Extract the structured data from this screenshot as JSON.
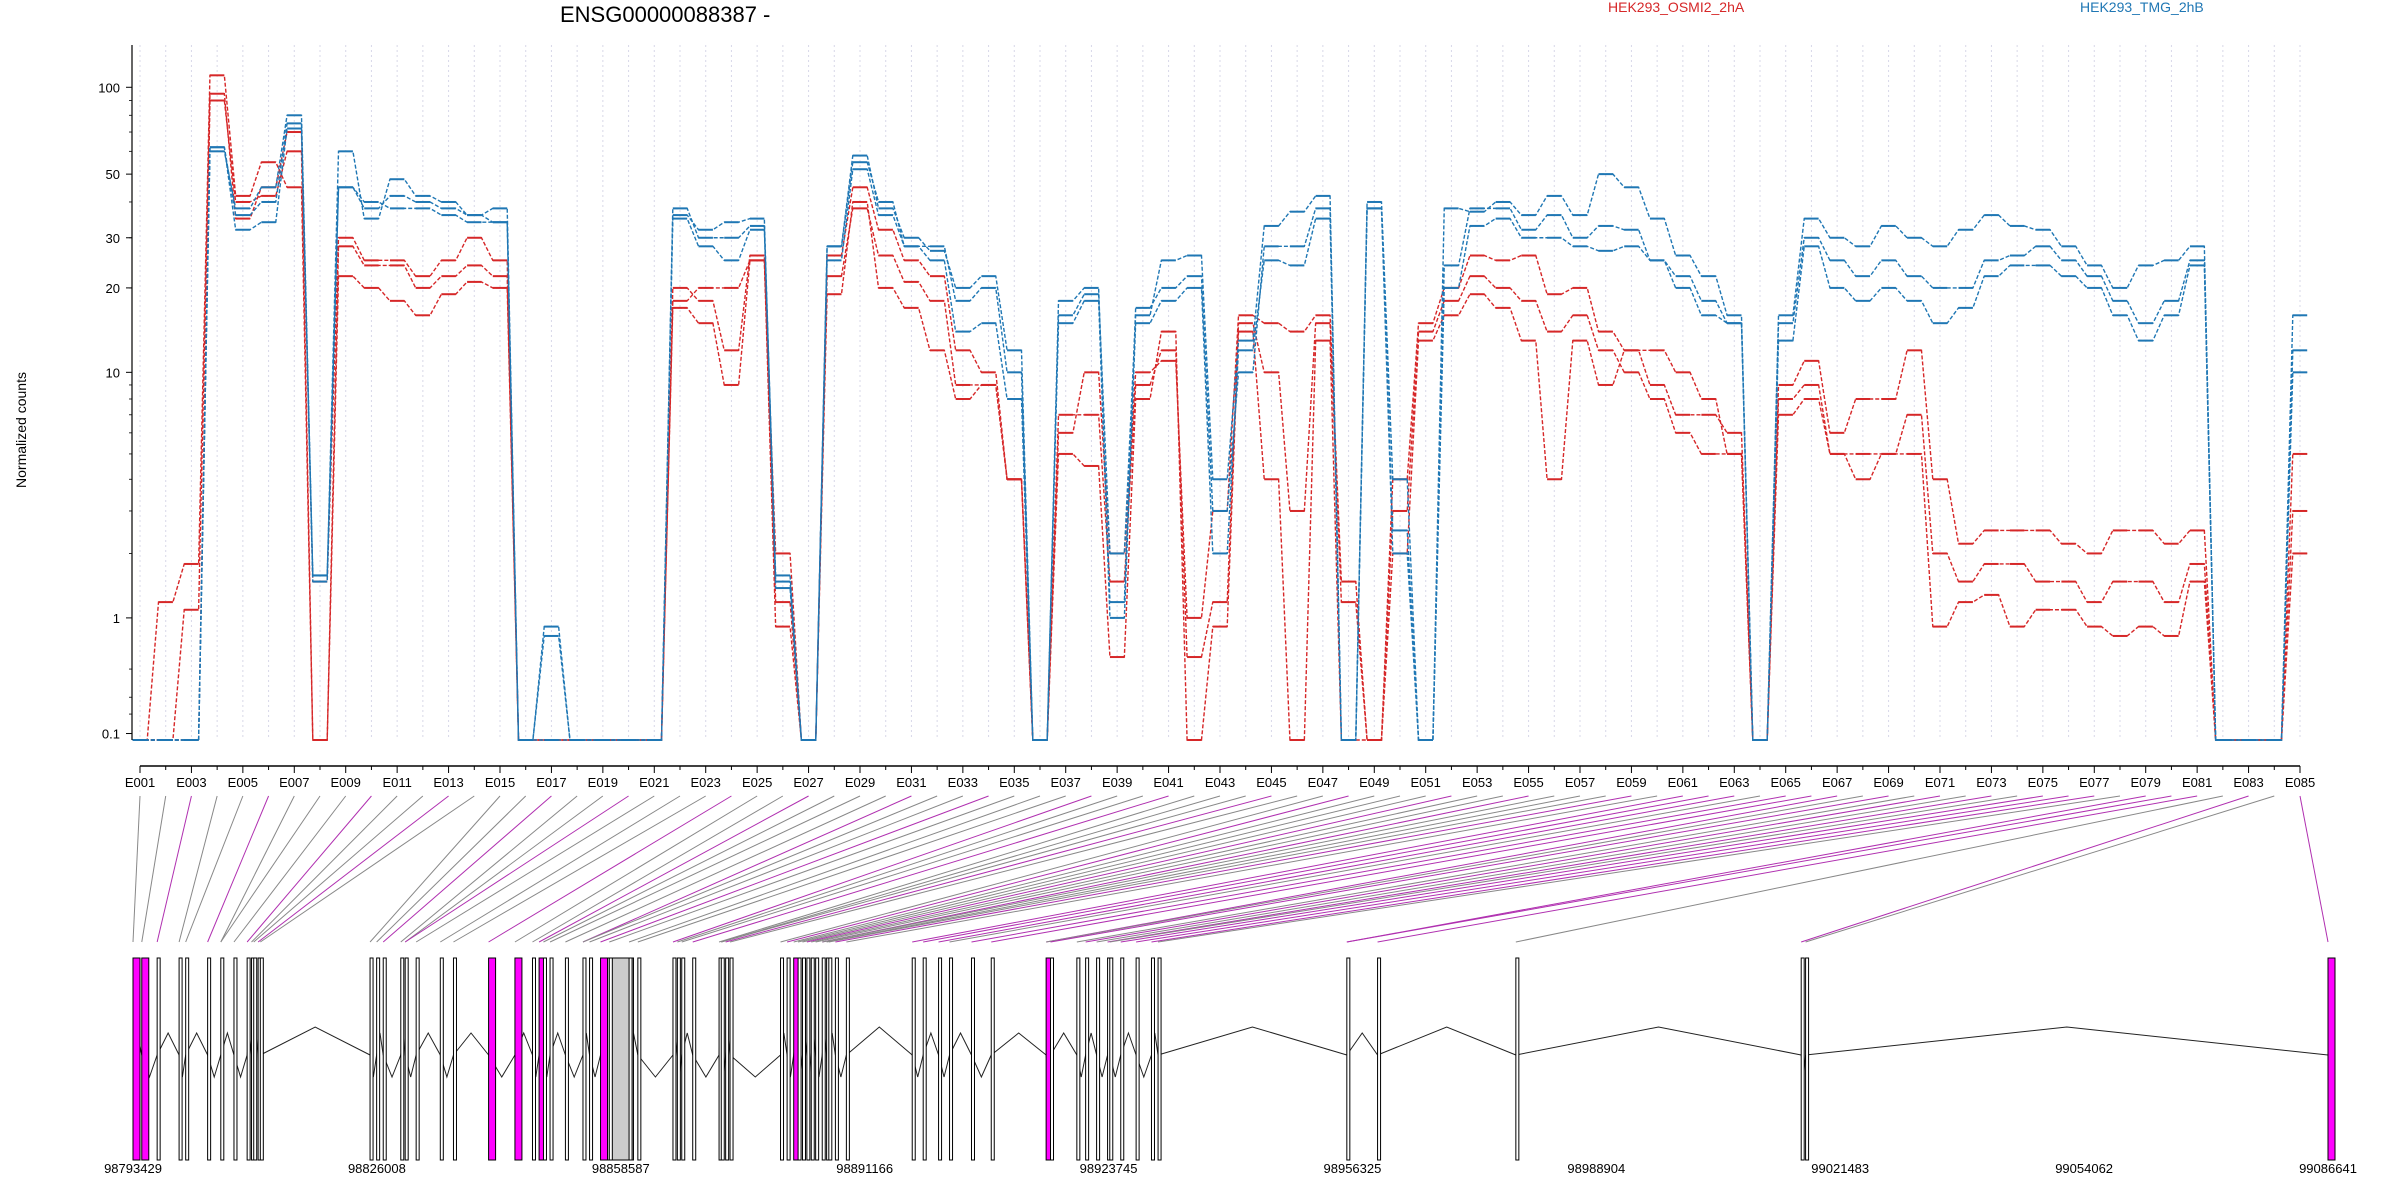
{
  "chart_data": {
    "type": "line",
    "title": "ENSG00000088387 -",
    "xlabel": "",
    "ylabel": "Normalized counts",
    "y_scale": "log (pseudo-count)",
    "y_ticks": [
      "100",
      "50",
      "30",
      "20",
      "10",
      "1",
      "0.1"
    ],
    "y_tick_values": [
      100,
      50,
      30,
      20,
      10,
      1,
      0.1
    ],
    "ylim": [
      0.07,
      140
    ],
    "x_ticks": [
      "E001",
      "E003",
      "E005",
      "E007",
      "E009",
      "E011",
      "E013",
      "E015",
      "E017",
      "E019",
      "E021",
      "E023",
      "E025",
      "E027",
      "E029",
      "E031",
      "E033",
      "E035",
      "E037",
      "E039",
      "E041",
      "E043",
      "E045",
      "E047",
      "E049",
      "E051",
      "E053",
      "E055",
      "E057",
      "E059",
      "E061",
      "E063",
      "E065",
      "E067",
      "E069",
      "E071",
      "E073",
      "E075",
      "E077",
      "E079",
      "E081",
      "E083",
      "E085"
    ],
    "grid": "vertical dotted lines at each exon",
    "legend_placement": "top",
    "series": [
      {
        "name": "HEK293_OSMI2_2hA",
        "color": "#d62728",
        "line": "dashed",
        "values": [
          0.07,
          1.2,
          1.8,
          110,
          42,
          55,
          45,
          0.07,
          22,
          20,
          18,
          16,
          19,
          21,
          20,
          0.07,
          0.07,
          0.07,
          0.07,
          0.07,
          0.07,
          17,
          15,
          9,
          25,
          0.9,
          0.07,
          19,
          40,
          20,
          17,
          12,
          8,
          9,
          4,
          0.07,
          5,
          4.5,
          0.6,
          8,
          14,
          0.07,
          0.9,
          14,
          4,
          0.07,
          13,
          0.07,
          0.07,
          2,
          13,
          16,
          19,
          17,
          13,
          4,
          13,
          9,
          12,
          12,
          10,
          8,
          5,
          0.07,
          7,
          8,
          5,
          4,
          5,
          5,
          0.9,
          1.2,
          1.3,
          0.9,
          1.1,
          1.1,
          0.9,
          0.8,
          0.9,
          0.8,
          1.5,
          0.07,
          0.07,
          0.07,
          2
        ]
      },
      {
        "name": "HEK293_OSMI2_2hA",
        "color": "#d62728",
        "line": "dashed",
        "values": [
          0.07,
          0.07,
          1.1,
          95,
          35,
          45,
          70,
          1.5,
          30,
          25,
          25,
          22,
          25,
          30,
          25,
          0.07,
          0.07,
          0.07,
          0.07,
          0.07,
          0.07,
          18,
          20,
          20,
          25,
          2,
          0.07,
          26,
          45,
          32,
          25,
          22,
          12,
          10,
          4,
          0.07,
          6,
          10,
          2,
          10,
          11,
          1,
          3,
          16,
          15,
          14,
          16,
          1.5,
          0.07,
          4,
          15,
          20,
          26,
          25,
          26,
          19,
          20,
          14,
          12,
          9,
          7,
          7,
          6,
          0.07,
          9,
          11,
          6,
          8,
          8,
          12,
          4,
          2.2,
          2.5,
          2.5,
          2.5,
          2.2,
          2,
          2.5,
          2.5,
          2.2,
          2.5,
          0.07,
          0.07,
          0.07,
          5
        ]
      },
      {
        "name": "HEK293_OSMI2_2hA",
        "color": "#d62728",
        "line": "dashed",
        "values": [
          0.07,
          0.07,
          0.07,
          90,
          40,
          42,
          60,
          0.07,
          28,
          24,
          24,
          20,
          22,
          24,
          22,
          0.07,
          0.07,
          0.07,
          0.07,
          0.07,
          0.07,
          20,
          18,
          12,
          26,
          1.2,
          0.07,
          22,
          38,
          26,
          21,
          18,
          9,
          9,
          4,
          0.07,
          7,
          7,
          1.5,
          9,
          12,
          0.6,
          1.2,
          15,
          10,
          3,
          15,
          1.2,
          0.07,
          3,
          14,
          18,
          22,
          20,
          18,
          14,
          16,
          12,
          10,
          8,
          6,
          5,
          5,
          0.07,
          8,
          9,
          5,
          5,
          5,
          7,
          2,
          1.5,
          1.8,
          1.8,
          1.5,
          1.5,
          1.2,
          1.5,
          1.5,
          1.2,
          1.8,
          0.07,
          0.07,
          0.07,
          3
        ]
      },
      {
        "name": "HEK293_TMG_2hB",
        "color": "#1f77b4",
        "line": "dashed",
        "values": [
          0.07,
          0.07,
          0.07,
          62,
          32,
          34,
          72,
          1.6,
          45,
          40,
          38,
          38,
          36,
          34,
          34,
          0.07,
          0.8,
          0.07,
          0.07,
          0.07,
          0.07,
          35,
          28,
          25,
          32,
          1.5,
          0.07,
          25,
          52,
          36,
          28,
          25,
          14,
          15,
          8,
          0.07,
          15,
          18,
          1,
          15,
          18,
          20,
          2,
          12,
          25,
          24,
          35,
          0.07,
          38,
          2,
          0.07,
          20,
          33,
          35,
          30,
          30,
          28,
          27,
          28,
          25,
          20,
          16,
          15,
          0.07,
          13,
          28,
          20,
          18,
          20,
          18,
          15,
          17,
          22,
          24,
          24,
          22,
          20,
          16,
          13,
          16,
          24,
          0.07,
          0.07,
          0.07,
          12
        ]
      },
      {
        "name": "HEK293_TMG_2hB",
        "color": "#1f77b4",
        "line": "dashed",
        "values": [
          0.07,
          0.07,
          0.07,
          62,
          36,
          40,
          75,
          1.5,
          45,
          38,
          42,
          40,
          38,
          36,
          34,
          0.07,
          0.9,
          0.07,
          0.07,
          0.07,
          0.07,
          38,
          30,
          30,
          33,
          1.6,
          0.07,
          28,
          55,
          40,
          28,
          28,
          18,
          20,
          10,
          0.07,
          18,
          20,
          1.2,
          17,
          20,
          22,
          3,
          10,
          28,
          28,
          38,
          0.07,
          38,
          2.5,
          0.07,
          24,
          38,
          38,
          32,
          36,
          30,
          33,
          32,
          25,
          22,
          18,
          15,
          0.07,
          15,
          30,
          25,
          22,
          25,
          22,
          20,
          20,
          25,
          26,
          28,
          25,
          22,
          18,
          15,
          18,
          25,
          0.07,
          0.07,
          0.07,
          10
        ]
      },
      {
        "name": "HEK293_TMG_2hB",
        "color": "#1f77b4",
        "line": "dashed",
        "values": [
          0.07,
          0.07,
          0.07,
          60,
          38,
          45,
          80,
          1.6,
          60,
          35,
          48,
          42,
          40,
          36,
          38,
          0.07,
          0.07,
          0.07,
          0.07,
          0.07,
          0.07,
          36,
          32,
          34,
          35,
          1.4,
          0.07,
          28,
          58,
          38,
          30,
          27,
          20,
          22,
          12,
          0.07,
          16,
          19,
          2,
          16,
          25,
          26,
          4,
          13,
          33,
          37,
          42,
          0.07,
          40,
          4,
          0.07,
          38,
          37,
          40,
          36,
          42,
          36,
          50,
          45,
          35,
          26,
          22,
          16,
          0.07,
          16,
          35,
          30,
          28,
          33,
          30,
          28,
          32,
          36,
          33,
          32,
          28,
          24,
          20,
          24,
          25,
          28,
          0.07,
          0.07,
          0.07,
          16
        ]
      }
    ],
    "gene_model": {
      "coordinate_ticks": [
        "98793429",
        "98826008",
        "98858587",
        "98891166",
        "98923745",
        "98956325",
        "98988904",
        "99021483",
        "99054062",
        "99086641"
      ],
      "exon_colors": {
        "default": "#ffffff",
        "highlight": "#ff00ff",
        "grey_block": "#cccccc"
      }
    }
  }
}
